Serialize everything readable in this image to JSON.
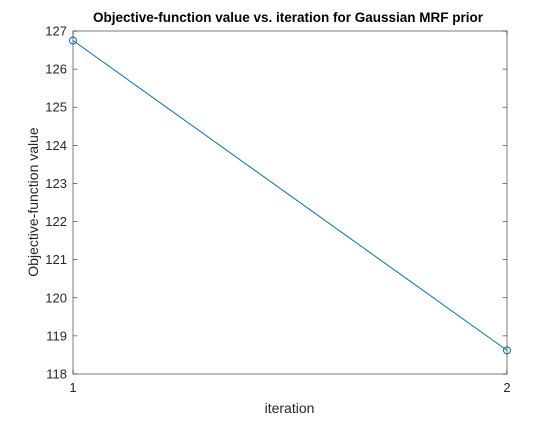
{
  "chart_data": {
    "type": "line",
    "title": "Objective-function value vs. iteration for Gaussian MRF prior",
    "xlabel": "iteration",
    "ylabel": "Objective-function value",
    "x": [
      1,
      2
    ],
    "series": [
      {
        "values": [
          126.75,
          118.62
        ],
        "color": "#0072BD",
        "marker": "circle"
      }
    ],
    "xlim": [
      1,
      2
    ],
    "ylim": [
      118,
      127
    ],
    "xticks": [
      1,
      2
    ],
    "yticks": [
      118,
      119,
      120,
      121,
      122,
      123,
      124,
      125,
      126,
      127
    ],
    "grid": false,
    "legend": "none",
    "colors": {
      "axis": "#262626",
      "background": "#ffffff"
    }
  }
}
